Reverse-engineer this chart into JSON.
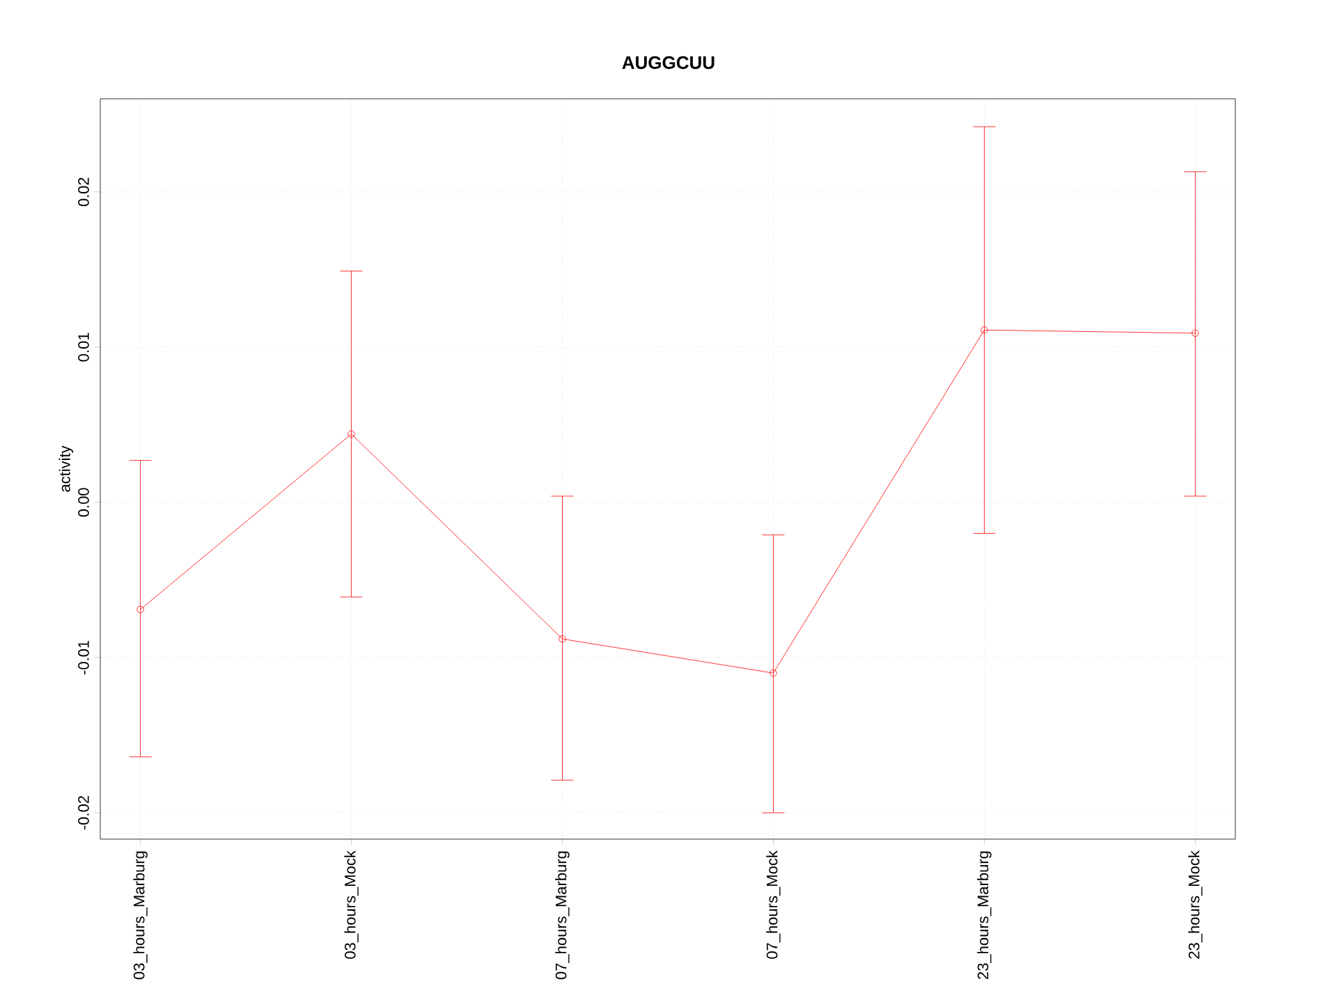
{
  "chart_data": {
    "type": "line",
    "title": "AUGGCUU",
    "ylabel": "activity",
    "categories": [
      "03_hours_Marburg",
      "03_hours_Mock",
      "07_hours_Marburg",
      "07_hours_Mock",
      "23_hours_Marburg",
      "23_hours_Mock"
    ],
    "series": [
      {
        "color": "#ff0000",
        "values": [
          -0.0069,
          0.0044,
          -0.0088,
          -0.011,
          0.0111,
          0.0109
        ],
        "errors": [
          [
            -0.0164,
            0.0027
          ],
          [
            -0.0061,
            0.0149
          ],
          [
            -0.0179,
            0.0004
          ],
          [
            -0.02,
            -0.0021
          ],
          [
            -0.002,
            0.0242
          ],
          [
            0.0004,
            0.0213
          ]
        ]
      }
    ],
    "ylim": [
      -0.0217,
      0.026
    ],
    "yticks": [
      {
        "value": -0.02,
        "label": "-0.02"
      },
      {
        "value": -0.01,
        "label": "-0.01"
      },
      {
        "value": 0,
        "label": "0.00"
      },
      {
        "value": 0.01,
        "label": "0.01"
      },
      {
        "value": 0.02,
        "label": "0.02"
      }
    ],
    "grid": true,
    "marker": "circle",
    "line_style": "solid"
  }
}
